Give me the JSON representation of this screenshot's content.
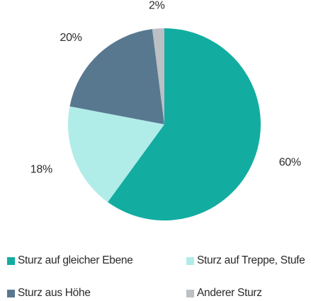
{
  "chart_data": {
    "type": "pie",
    "slices": [
      {
        "name": "Sturz auf gleicher Ebene",
        "value": 60,
        "label": "60%",
        "color": "#13aca1"
      },
      {
        "name": "Sturz auf Treppe, Stufe",
        "value": 18,
        "label": "18%",
        "color": "#b0ece8"
      },
      {
        "name": "Sturz aus Höhe",
        "value": 20,
        "label": "20%",
        "color": "#587890"
      },
      {
        "name": "Anderer Sturz",
        "value": 2,
        "label": "2%",
        "color": "#bcbfc3"
      }
    ],
    "legend_position": "bottom",
    "start_angle_deg": 0,
    "direction": "clockwise"
  }
}
